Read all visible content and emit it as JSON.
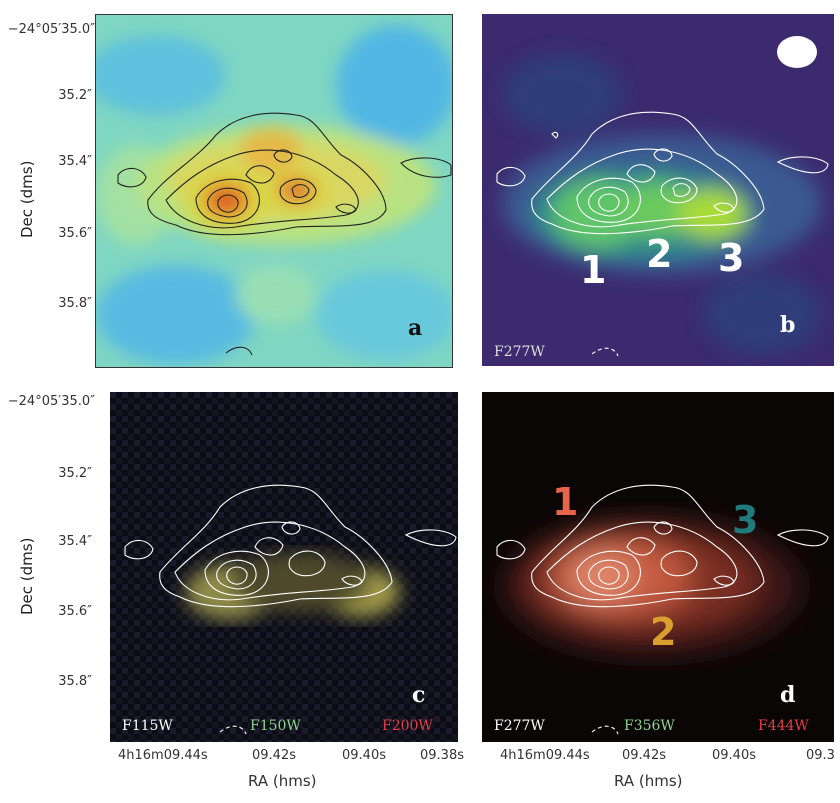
{
  "panels": {
    "a": {
      "letter": "a"
    },
    "b": {
      "letter": "b",
      "filter": "F277W",
      "labels": [
        "1",
        "2",
        "3"
      ]
    },
    "c": {
      "letter": "c",
      "filters": [
        "F115W",
        "F150W",
        "F200W"
      ]
    },
    "d": {
      "letter": "d",
      "filters": [
        "F277W",
        "F356W",
        "F444W"
      ],
      "labels": [
        "1",
        "2",
        "3"
      ]
    }
  },
  "axes": {
    "ylabel": "Dec (dms)",
    "xlabel": "RA (hms)",
    "yticks": [
      "−24°05′35.0″",
      "35.2″",
      "35.4″",
      "35.6″",
      "35.8″"
    ],
    "xticks_left": [
      "4h16m09.44s",
      "09.42s",
      "09.40s",
      "09.38s"
    ],
    "xticks_right": [
      "4h16m09.44s",
      "09.42s",
      "09.40s",
      "09.3"
    ]
  },
  "colors": {
    "b_label": "#ffffff",
    "d_label1": "#e8644a",
    "d_label2": "#d9a030",
    "d_label3": "#1f7a7a",
    "filter_white": "#ffffff",
    "filter_green": "#8fd48f",
    "filter_red": "#e0404a"
  }
}
